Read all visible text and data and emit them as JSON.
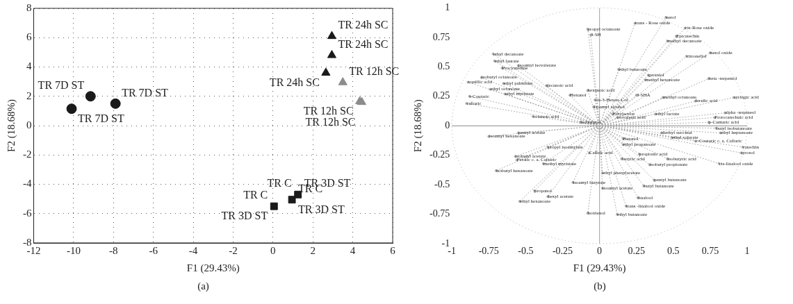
{
  "chart_data": [
    {
      "type": "scatter",
      "xlabel": "F1 (29.43%)",
      "ylabel": "F2 (18.68%)",
      "xlim": [
        -12,
        6
      ],
      "xticks": [
        -12,
        -10,
        -8,
        -6,
        -4,
        -2,
        0,
        2,
        4,
        6
      ],
      "ylim": [
        -8,
        8
      ],
      "yticks": [
        -8,
        -6,
        -4,
        -2,
        0,
        2,
        4,
        6,
        8
      ],
      "grid": true,
      "series": [
        {
          "color": "#1a1a1a",
          "marker": "circle",
          "x": [
            -10.1,
            -9.15,
            -7.9
          ],
          "values": [
            1.15,
            2.0,
            1.5
          ]
        },
        {
          "color": "#1a1a1a",
          "marker": "triangle",
          "x": [
            2.95,
            2.95,
            2.65
          ],
          "values": [
            6.1,
            4.8,
            3.6
          ]
        },
        {
          "color": "#8c8c8c",
          "marker": "triangle",
          "x": [
            3.5,
            4.35,
            4.45
          ],
          "values": [
            2.95,
            1.65,
            1.6
          ]
        },
        {
          "color": "#1a1a1a",
          "marker": "square",
          "x": [
            0.05,
            0.95,
            1.25
          ],
          "values": [
            -5.5,
            -5.05,
            -4.7
          ]
        }
      ],
      "annotations": [
        {
          "text": "TR 24h SC",
          "x": 2.95,
          "y": 6.1
        },
        {
          "text": "TR 24h SC",
          "x": 2.95,
          "y": 4.8
        },
        {
          "text": "TR 24h SC",
          "x": 2.65,
          "y": 3.6
        },
        {
          "text": "TR 12h SC",
          "x": 3.5,
          "y": 2.95
        },
        {
          "text": "TR 12h SC",
          "x": 4.35,
          "y": 1.65
        },
        {
          "text": "TR 12h SC",
          "x": 4.45,
          "y": 1.6
        },
        {
          "text": "TR 7D ST",
          "x": -7.9,
          "y": 1.5
        },
        {
          "text": "TR 7D ST",
          "x": -9.15,
          "y": 2.0
        },
        {
          "text": "TR 7D ST",
          "x": -10.1,
          "y": 1.15
        },
        {
          "text": "TR 3D ST",
          "x": 1.25,
          "y": -4.7
        },
        {
          "text": "TR 3D ST",
          "x": 0.95,
          "y": -5.05
        },
        {
          "text": "TR 3D ST",
          "x": 0.05,
          "y": -5.5
        },
        {
          "text": "TR C",
          "x": 0.05,
          "y": -5.5
        },
        {
          "text": "TR C",
          "x": 0.95,
          "y": -5.05
        },
        {
          "text": "TR C",
          "x": 1.25,
          "y": -4.7
        },
        "(a)"
      ]
    },
    {
      "type": "scatter",
      "xlabel": "F1 (29.43%)",
      "ylabel": "F2 (18.68%)",
      "xlim": [
        -1,
        1
      ],
      "xticks": [
        -1,
        -0.75,
        -0.5,
        -0.25,
        0,
        0.25,
        0.5,
        0.75,
        1
      ],
      "ylim": [
        -1,
        1
      ],
      "yticks": [
        -1,
        -0.75,
        -0.5,
        -0.25,
        0,
        0.25,
        0.5,
        0.75,
        1
      ],
      "grid": false,
      "ref_lines": [
        {
          "axis": "x",
          "value": 0,
          "color": "#b0b0b0"
        },
        {
          "axis": "y",
          "value": 0,
          "color": "#a0a0a0"
        }
      ],
      "series": [
        {
          "color": "#aaaaaa",
          "marker": "circle",
          "line_style": "dotted",
          "x": [
            -0.72,
            -0.71,
            -0.55,
            -0.66,
            -0.8,
            -0.89,
            -0.65,
            -0.74,
            -0.64,
            -0.36,
            -0.88,
            -0.9,
            -0.45,
            -0.55,
            -0.75,
            -0.35,
            0.45,
            0.24,
            0.58,
            -0.08,
            -0.06,
            0.52,
            0.46,
            0.75,
            0.59,
            0.13,
            0.33,
            0.31,
            0.74,
            -0.08,
            -0.2,
            0.25,
            -0.03,
            0.43,
            0.65,
            0.91,
            -0.04,
            0.09,
            0.12,
            0.38,
            0.85,
            0.78,
            0.74,
            -0.13,
            0.79,
            0.82,
            0.42,
            0.49,
            0.65,
            0.16,
            0.16,
            -0.07,
            0.27,
            0.97,
            0.96,
            0.15,
            0.46,
            0.34,
            0.81,
            0.02,
            -0.18,
            0.02,
            0.37,
            0.3,
            0.26,
            0.18,
            -0.08,
            0.12,
            -0.57,
            -0.56,
            -0.38,
            -0.7,
            -0.44,
            -0.35,
            -0.54
          ],
          "values": [
            0.61,
            0.55,
            0.51,
            0.49,
            0.41,
            0.37,
            0.36,
            0.31,
            0.27,
            0.34,
            0.25,
            0.19,
            0.08,
            -0.06,
            -0.09,
            -0.18,
            0.92,
            0.87,
            0.83,
            0.82,
            0.77,
            0.76,
            0.72,
            0.62,
            0.59,
            0.48,
            0.43,
            0.39,
            0.4,
            0.3,
            0.26,
            0.26,
            0.22,
            0.24,
            0.21,
            0.24,
            0.16,
            0.1,
            0.07,
            0.1,
            0.11,
            0.07,
            0.03,
            0.03,
            -0.02,
            -0.06,
            -0.06,
            -0.1,
            -0.13,
            -0.11,
            -0.16,
            -0.23,
            -0.24,
            -0.18,
            -0.23,
            -0.28,
            -0.28,
            -0.33,
            -0.32,
            -0.4,
            -0.48,
            -0.53,
            -0.46,
            -0.51,
            -0.61,
            -0.68,
            -0.74,
            -0.75,
            -0.26,
            -0.29,
            -0.32,
            -0.38,
            -0.55,
            -0.6,
            -0.64
          ]
        }
      ],
      "annotations": [
        {
          "text": "ethyl decanoate",
          "x": -0.72,
          "y": 0.61
        },
        {
          "text": "ethyl laurate",
          "x": -0.71,
          "y": 0.55
        },
        {
          "text": "isoamyl isovalerate",
          "x": -0.55,
          "y": 0.51
        },
        {
          "text": "Procyanidine",
          "x": -0.66,
          "y": 0.49
        },
        {
          "text": "isobutyl octanoate",
          "x": -0.8,
          "y": 0.41
        },
        {
          "text": "vanillic acid",
          "x": -0.89,
          "y": 0.37
        },
        {
          "text": "ethyl palmitate",
          "x": -0.65,
          "y": 0.36
        },
        {
          "text": "ethyl octanoate",
          "x": -0.74,
          "y": 0.31
        },
        {
          "text": "ethyl myristate",
          "x": -0.64,
          "y": 0.27
        },
        {
          "text": "decanoic acid",
          "x": -0.36,
          "y": 0.34
        },
        {
          "text": "t-Coutaric",
          "x": -0.88,
          "y": 0.25
        },
        {
          "text": "caftaric",
          "x": -0.9,
          "y": 0.19
        },
        {
          "text": "octanoic acid",
          "x": -0.45,
          "y": 0.08
        },
        {
          "text": "pentyl acetate",
          "x": -0.55,
          "y": -0.06
        },
        {
          "text": "isoamyl hexanoate",
          "x": -0.75,
          "y": -0.09
        },
        {
          "text": "propyl isoamylate",
          "x": -0.35,
          "y": -0.18
        },
        {
          "text": "nerol",
          "x": 0.45,
          "y": 0.92
        },
        {
          "text": "trans - Rose oxide",
          "x": 0.24,
          "y": 0.87
        },
        {
          "text": "cis-Rose oxide",
          "x": 0.58,
          "y": 0.83
        },
        {
          "text": "propyl octanoate",
          "x": -0.08,
          "y": 0.82
        },
        {
          "text": "3-SH",
          "x": -0.06,
          "y": 0.77
        },
        {
          "text": "Epicatechin",
          "x": 0.52,
          "y": 0.76
        },
        {
          "text": "methyl decanoate",
          "x": 0.46,
          "y": 0.72
        },
        {
          "text": "nerol oxide",
          "x": 0.75,
          "y": 0.62
        },
        {
          "text": "citronellol",
          "x": 0.59,
          "y": 0.59
        },
        {
          "text": "ethyl benzoate",
          "x": 0.13,
          "y": 0.48
        },
        {
          "text": "geraniol",
          "x": 0.33,
          "y": 0.43
        },
        {
          "text": "methyl hexanoate",
          "x": 0.31,
          "y": 0.39
        },
        {
          "text": "beta -terpeniol",
          "x": 0.74,
          "y": 0.4
        },
        {
          "text": "hexanoic acid",
          "x": -0.08,
          "y": 0.3
        },
        {
          "text": "Hexanol",
          "x": -0.2,
          "y": 0.26
        },
        {
          "text": "3-SHA",
          "x": 0.25,
          "y": 0.26
        },
        {
          "text": "cis-3-Hexen-1-ol",
          "x": -0.03,
          "y": 0.22
        },
        {
          "text": "methyl octanoate",
          "x": 0.43,
          "y": 0.24
        },
        {
          "text": "ferulic acid",
          "x": 0.65,
          "y": 0.21
        },
        {
          "text": "syringic acid",
          "x": 0.91,
          "y": 0.24
        },
        {
          "text": "Isoamyl alcohol",
          "x": -0.04,
          "y": 0.16
        },
        {
          "text": "Ethylacetat",
          "x": 0.09,
          "y": 0.1
        },
        {
          "text": "isovaleric acid",
          "x": 0.12,
          "y": 0.07
        },
        {
          "text": "ethyl lactate",
          "x": 0.38,
          "y": 0.1
        },
        {
          "text": "alpha -terpineol",
          "x": 0.85,
          "y": 0.11
        },
        {
          "text": "Protocatechuic acid",
          "x": 0.78,
          "y": 0.07
        },
        {
          "text": "p-Cumaric acid",
          "x": 0.74,
          "y": 0.03
        },
        {
          "text": "Isobutanol",
          "x": -0.13,
          "y": 0.03
        },
        {
          "text": "butyl isobutanoate",
          "x": 0.79,
          "y": -0.02
        },
        {
          "text": "ethyl heptanoate",
          "x": 0.82,
          "y": -0.06
        },
        {
          "text": "diethyl succinat",
          "x": 0.42,
          "y": -0.06
        },
        {
          "text": "ethyl valerate",
          "x": 0.49,
          "y": -0.1
        },
        {
          "text": "c-Coutaric c. a. Caftaric",
          "x": 0.65,
          "y": -0.13
        },
        {
          "text": "Butanol",
          "x": 0.16,
          "y": -0.11
        },
        {
          "text": "ethyl propanoate",
          "x": 0.16,
          "y": -0.16
        },
        {
          "text": "Caffeic acid",
          "x": -0.07,
          "y": -0.23
        },
        {
          "text": "propionic acid",
          "x": 0.27,
          "y": -0.24
        },
        {
          "text": "catechin",
          "x": 0.97,
          "y": -0.18
        },
        {
          "text": "tyrosol",
          "x": 0.96,
          "y": -0.23
        },
        {
          "text": "butyric acid",
          "x": 0.15,
          "y": -0.28
        },
        {
          "text": "isobutyric acid",
          "x": 0.46,
          "y": -0.28
        },
        {
          "text": "isobutyl propionate",
          "x": 0.34,
          "y": -0.33
        },
        {
          "text": "cis-linalool oxide",
          "x": 0.81,
          "y": -0.32
        },
        {
          "text": "ethyl phenylacetate",
          "x": 0.02,
          "y": -0.4
        },
        {
          "text": "isoamyl butyrate",
          "x": -0.18,
          "y": -0.48
        },
        {
          "text": "isoamyl acetate",
          "x": 0.02,
          "y": -0.53
        },
        {
          "text": "pentyl butanoate",
          "x": 0.37,
          "y": -0.46
        },
        {
          "text": "butyl butanoate",
          "x": 0.3,
          "y": -0.51
        },
        {
          "text": "linalool",
          "x": 0.26,
          "y": -0.61
        },
        {
          "text": "trans -linalool oxide",
          "x": 0.18,
          "y": -0.68
        },
        {
          "text": "hotrienol",
          "x": -0.08,
          "y": -0.74
        },
        {
          "text": "ethyl butanoate",
          "x": 0.12,
          "y": -0.75
        },
        {
          "text": "isobutyl acetate",
          "x": -0.57,
          "y": -0.26
        },
        {
          "text": "Feratic c. a. Caftaric",
          "x": -0.56,
          "y": -0.29
        },
        {
          "text": "methyl myristate",
          "x": -0.38,
          "y": -0.32
        },
        {
          "text": "isobutyl hexanoate",
          "x": -0.7,
          "y": -0.38
        },
        {
          "text": "propanol",
          "x": -0.44,
          "y": -0.55
        },
        {
          "text": "hexyl acetate",
          "x": -0.35,
          "y": -0.6
        },
        {
          "text": "ethyl hexanoate",
          "x": -0.54,
          "y": -0.64
        },
        "(b)"
      ]
    }
  ]
}
